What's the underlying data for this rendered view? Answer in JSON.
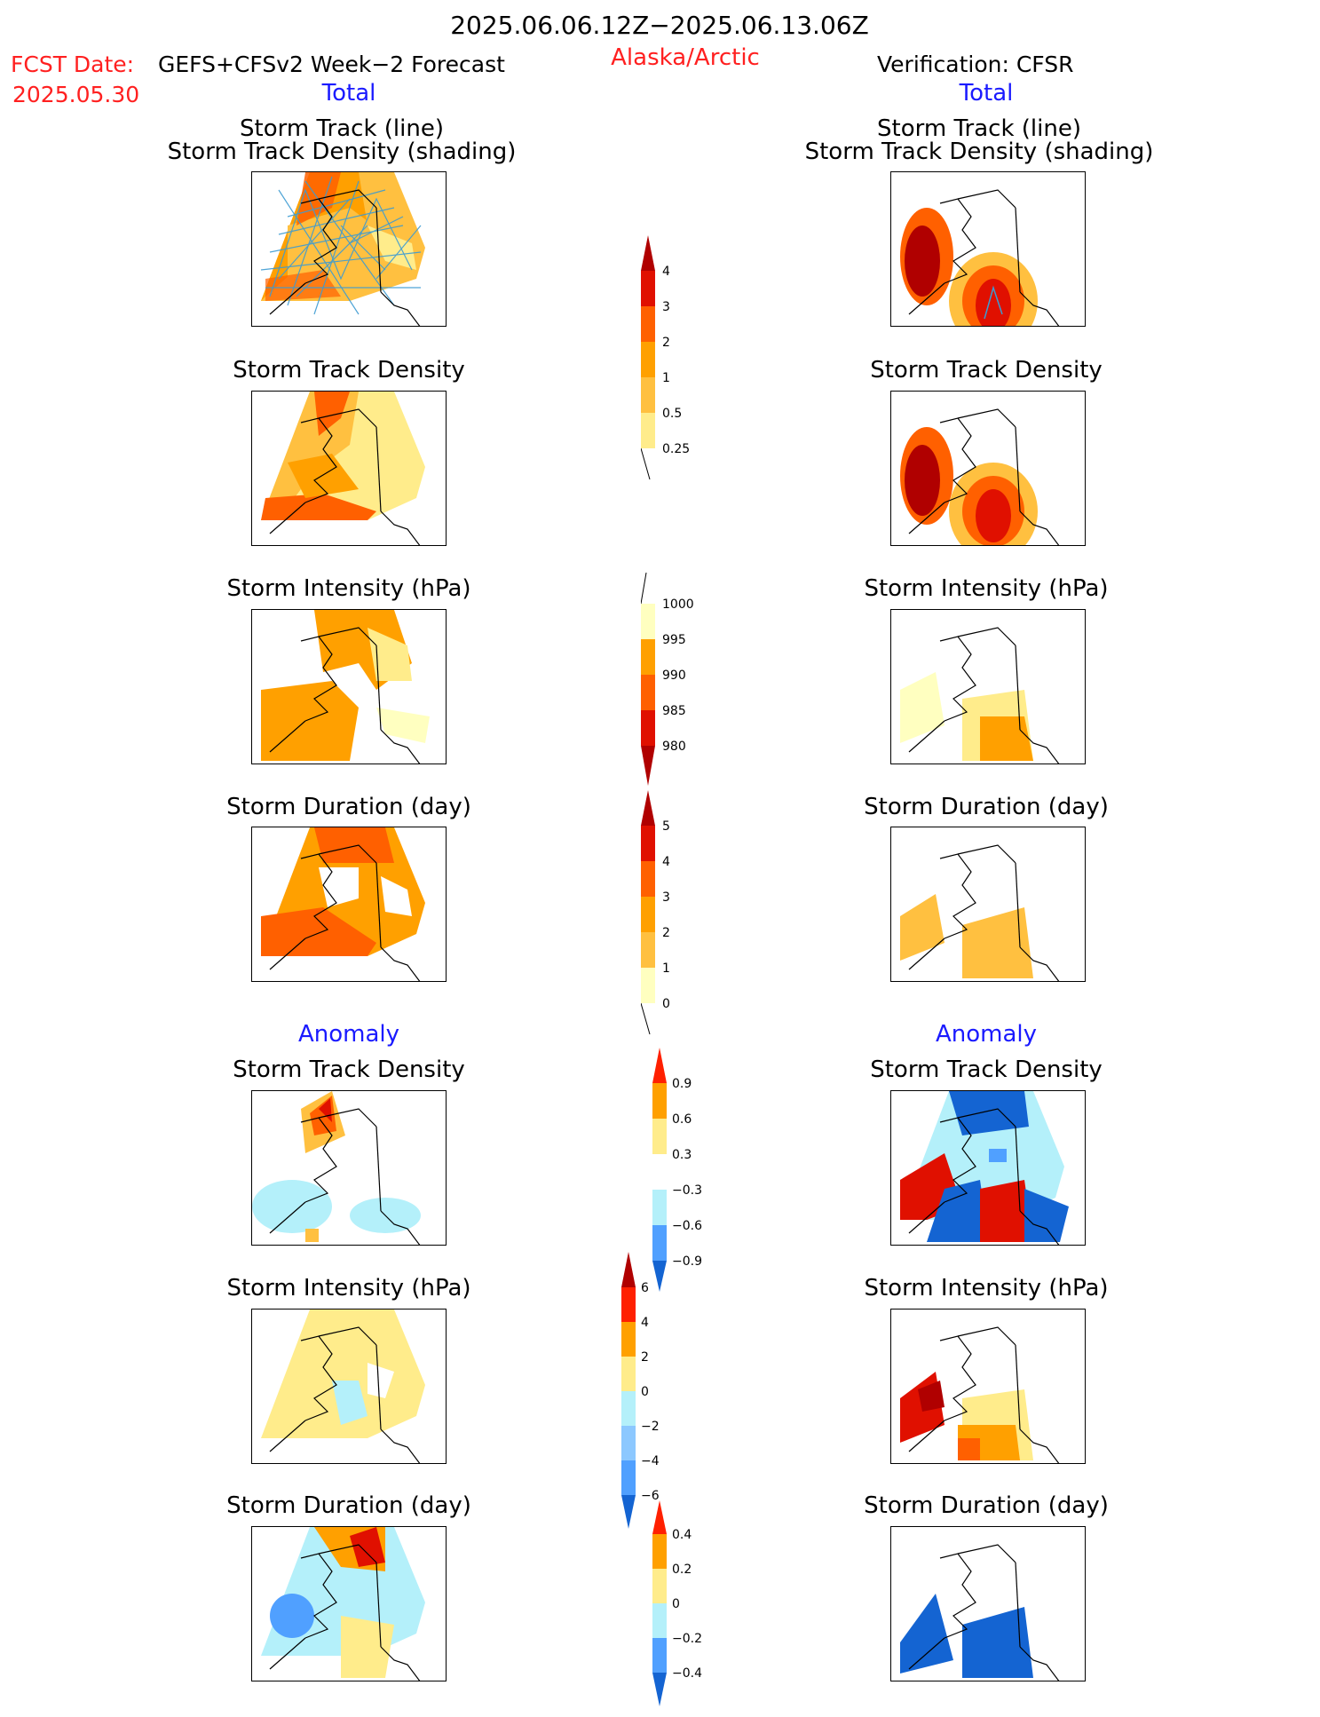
{
  "header": {
    "title": "2025.06.06.12Z−2025.06.13.06Z",
    "fcst_label": "FCST Date:",
    "fcst_value": "2025.05.30",
    "model": "GEFS+CFSv2 Week−2 Forecast",
    "region": "Alaska/Arctic",
    "verification": "Verification: CFSR"
  },
  "sections": {
    "total_left": "Total",
    "total_right": "Total",
    "anomaly_left": "Anomaly",
    "anomaly_right": "Anomaly"
  },
  "panel_titles": {
    "track_line": "Storm Track (line)",
    "track_shading": "Storm Track Density (shading)",
    "density": "Storm Track Density",
    "intensity": "Storm Intensity (hPa)",
    "duration": "Storm Duration (day)"
  },
  "colors": {
    "light_yellow": "#ffffc0",
    "pale_yellow": "#ffec8b",
    "gold": "#ffc040",
    "orange": "#ffa000",
    "dark_orange": "#ff6000",
    "red": "#e01000",
    "dark_red": "#b00000",
    "light_cyan": "#b4f0fa",
    "sky_blue": "#8cc8ff",
    "med_blue": "#50a0ff",
    "dark_blue": "#1464d2",
    "track_line": "#3c9bd2"
  },
  "colorbars": [
    {
      "name": "total-density",
      "labels": [
        "4",
        "3",
        "2",
        "1",
        "0.5",
        "0.25"
      ]
    },
    {
      "name": "total-intensity",
      "labels": [
        "1000",
        "995",
        "990",
        "985",
        "980"
      ]
    },
    {
      "name": "total-duration",
      "labels": [
        "5",
        "4",
        "3",
        "2",
        "1",
        "0"
      ]
    },
    {
      "name": "anomaly-density",
      "labels": [
        "0.9",
        "0.6",
        "0.3",
        "−0.3",
        "−0.6",
        "−0.9"
      ]
    },
    {
      "name": "anomaly-intensity",
      "labels": [
        "6",
        "4",
        "2",
        "0",
        "−2",
        "−4",
        "−6"
      ]
    },
    {
      "name": "anomaly-duration",
      "labels": [
        "0.4",
        "0.2",
        "0",
        "−0.2",
        "−0.4"
      ]
    }
  ]
}
